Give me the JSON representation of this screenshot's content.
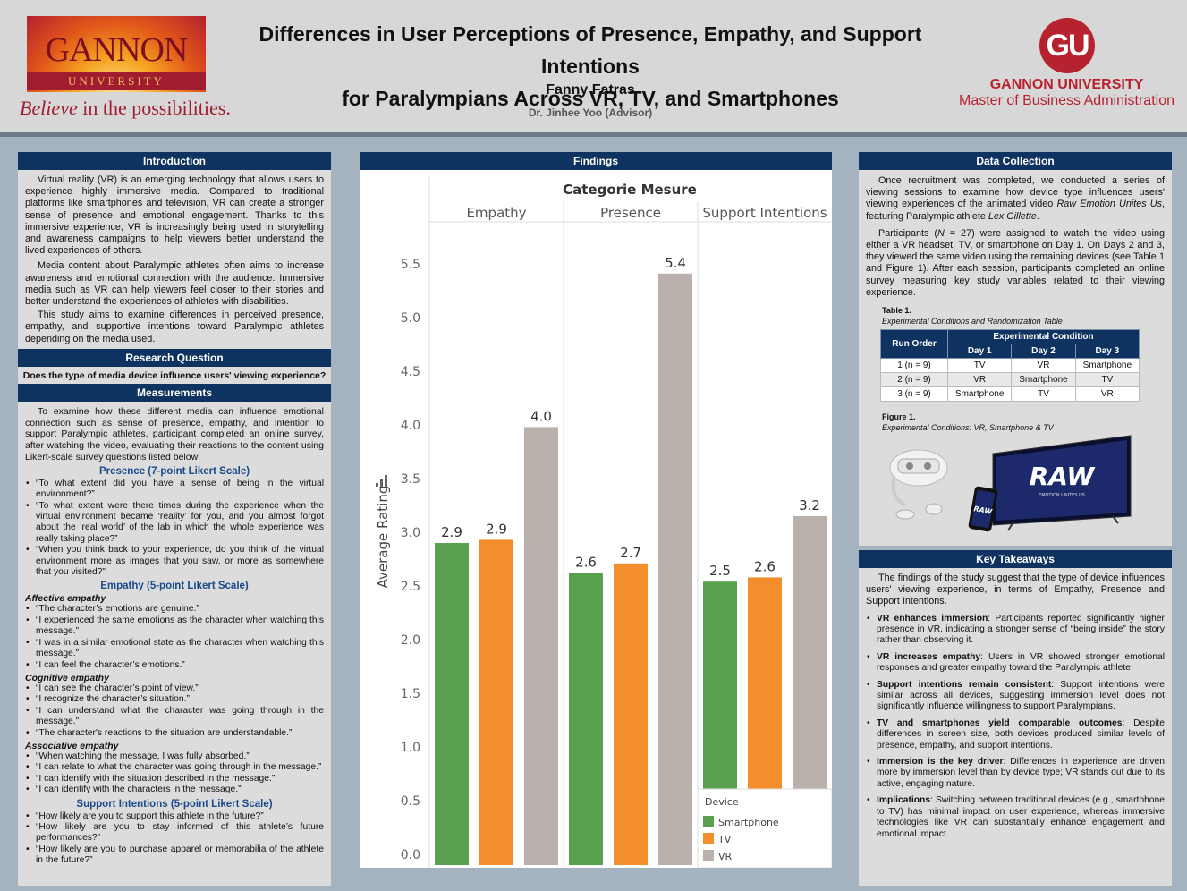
{
  "header": {
    "logo_name": "GANNON",
    "logo_university": "UNIVERSITY",
    "tagline_italic": "Believe",
    "tagline_rest": " in the possibilities.",
    "title_line1": "Differences in User Perceptions of Presence, Empathy, and Support Intentions",
    "title_line2": "for Paralympians Across VR, TV, and Smartphones",
    "author": "Fanny Fatras",
    "advisor": "Dr. Jinhee Yoo (Advisor)",
    "gu_mark": "GU",
    "gu_name": "GANNON UNIVERSITY",
    "gu_program": "Master of Business Administration"
  },
  "introduction": {
    "heading": "Introduction",
    "p1": "Virtual reality (VR) is an emerging technology that allows users to experience highly immersive media. Compared to traditional platforms like smartphones and television, VR can create a stronger sense of presence and emotional engagement. Thanks to this immersive experience, VR is increasingly being used in storytelling and awareness campaigns to help viewers better understand the lived experiences of others.",
    "p2": "Media content about Paralympic athletes often aims to increase awareness and emotional connection with the audience. Immersive media such as VR can help viewers feel closer to their stories and better understand the experiences of athletes with disabilities.",
    "p3": "This study aims to examine differences in perceived presence, empathy, and supportive intentions toward Paralympic athletes depending on the media used."
  },
  "research_question": {
    "heading": "Research Question",
    "text": "Does the type of media device influence users' viewing experience?"
  },
  "measurements": {
    "heading": "Measurements",
    "intro": "To examine how these different media can influence emotional connection such as  sense of presence, empathy, and intention to support Paralympic athletes, participant completed an online survey, after watching the video, evaluating their reactions to the content using Likert-scale survey questions listed below:",
    "presence_title": "Presence (7-point Likert Scale)",
    "presence_items": [
      "“To what extent did you have a sense of being in the virtual environment?”",
      "“To what extent were there times during the experience when the virtual environment became ‘reality’ for you, and you almost forgot about the ‘real world’ of the lab in which the whole experience was really taking place?”",
      "“When you think back to your experience, do you think of the virtual environment more as images that you saw, or more as somewhere that you visited?”"
    ],
    "empathy_title": "Empathy (5-point Likert Scale)",
    "affective_label": "Affective empathy",
    "affective_items": [
      "“The character’s emotions are genuine.”",
      "“I experienced the same emotions as the character when watching this message.”",
      "“I was in a similar emotional state as the character when watching this message.”",
      "“I can feel the character’s emotions.”"
    ],
    "cognitive_label": "Cognitive empathy",
    "cognitive_items": [
      "“I can see the character’s point of view.”",
      "“I recognize the character’s situation.”",
      "“I can understand what the character was going through in the message.”",
      "“The character's reactions to the situation are understandable.”"
    ],
    "associative_label": "Associative empathy",
    "associative_items": [
      "“When watching the message, I was fully absorbed.”",
      "“I can relate to what the character was going through in the message.”",
      "“I can identify with the situation described in the message.”",
      "“I can identify with the characters in the message.”"
    ],
    "support_title": "Support Intentions (5-point Likert Scale)",
    "support_items": [
      "“How likely are you to support this athlete in the future?”",
      "“How likely are you to stay informed of this athlete’s future performances?”",
      "“How likely are you to purchase apparel or memorabilia of the athlete in the future?”"
    ]
  },
  "findings": {
    "heading": "Findings"
  },
  "chart_data": {
    "type": "bar",
    "title": "Categorie Mesure",
    "categories": [
      "Empathy",
      "Presence",
      "Support Intentions"
    ],
    "series": [
      {
        "name": "Smartphone",
        "color": "#59a14f",
        "values": [
          2.9,
          2.6,
          2.5
        ],
        "true_values": [
          2.9,
          2.62,
          2.54
        ]
      },
      {
        "name": "TV",
        "color": "#f28e2b",
        "values": [
          2.9,
          2.7,
          2.6
        ],
        "true_values": [
          2.93,
          2.71,
          2.58
        ]
      },
      {
        "name": "VR",
        "color": "#bab0ac",
        "values": [
          4.0,
          5.4,
          3.2
        ],
        "true_values": [
          3.98,
          5.41,
          3.15
        ]
      }
    ],
    "ylabel": "Average Rating",
    "xlabel": "",
    "ylim": [
      0,
      5.8
    ],
    "yticks": [
      "0.0",
      "0.5",
      "1.0",
      "1.5",
      "2.0",
      "2.5",
      "3.0",
      "3.5",
      "4.0",
      "4.5",
      "5.0",
      "5.5"
    ],
    "legend_title": "Device",
    "legend_position": "bottom-right"
  },
  "data_collection": {
    "heading": "Data Collection",
    "p1_a": "Once recruitment was completed, we conducted a series of viewing sessions to examine how device type influences users' viewing experiences of the animated video ",
    "p1_video": "Raw Emotion Unites Us",
    "p1_b": ", featuring Paralympic athlete ",
    "p1_athlete": "Lex Gillette",
    "p1_c": ".",
    "p2_a": "Participants (",
    "p2_n": "N",
    "p2_b": " = 27) were assigned to watch the video using either a VR headset, TV, or smartphone on Day 1. On Days 2 and 3, they viewed the same video using the remaining devices (see Table 1 and Figure 1). After each session, participants completed an online survey measuring key study variables related to their viewing experience.",
    "table_label": "Table 1.",
    "table_caption": "Experimental Conditions and Randomization Table",
    "table_head_run": "Run Order",
    "table_head_exp": "Experimental Condition",
    "table_days": [
      "Day 1",
      "Day 2",
      "Day 3"
    ],
    "table_rows": [
      {
        "run": "1 (n = 9)",
        "d1": "TV",
        "d2": "VR",
        "d3": "Smartphone"
      },
      {
        "run": "2 (n = 9)",
        "d1": "VR",
        "d2": "Smartphone",
        "d3": "TV"
      },
      {
        "run": "3 (n = 9)",
        "d1": "Smartphone",
        "d2": "TV",
        "d3": "VR"
      }
    ],
    "figure_label": "Figure 1.",
    "figure_caption": "Experimental Conditions: VR, Smartphone & TV",
    "tv_logo": "RAW",
    "tv_sub": "EMOTION UNITES US",
    "phone_logo": "RAW"
  },
  "key_takeaways": {
    "heading": "Key Takeaways",
    "intro": "The findings of the study suggest that the type of device influences users' viewing experience, in terms of Empathy, Presence and Support Intentions.",
    "items": [
      {
        "bold": "VR enhances immersion",
        "text": ": Participants reported significantly higher presence in VR, indicating a stronger sense of “being inside” the story rather than observing it."
      },
      {
        "bold": "VR increases empathy",
        "text": ": Users in VR showed stronger emotional responses and greater empathy toward the Paralympic athlete."
      },
      {
        "bold": "Support intentions remain consistent",
        "text": ": Support intentions were similar across all devices, suggesting immersion level does not significantly influence willingness to support Paralympians."
      },
      {
        "bold": "TV and smartphones yield comparable outcomes",
        "text": ": Despite differences in screen size, both devices produced similar levels of presence, empathy, and support intentions."
      },
      {
        "bold": "Immersion is the key driver",
        "text": ": Differences in experience are driven more by immersion level than by device type; VR stands out due to its active, engaging nature."
      },
      {
        "bold": "Implications",
        "text": ": Switching between traditional devices (e.g., smartphone to TV) has minimal impact on user experience, whereas immersive technologies like VR can substantially enhance engagement and emotional impact."
      }
    ]
  }
}
